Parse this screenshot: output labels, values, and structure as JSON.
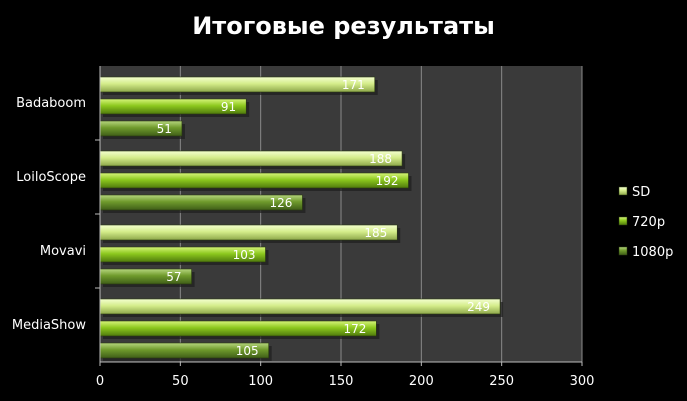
{
  "chart_data": {
    "type": "bar",
    "orientation": "horizontal",
    "title": "Итоговые результаты",
    "categories": [
      "Badaboom",
      "LoiloScope",
      "Movavi",
      "MediaShow"
    ],
    "series": [
      {
        "name": "SD",
        "values": [
          171,
          188,
          185,
          249
        ],
        "color": "#d4ec8a"
      },
      {
        "name": "720p",
        "values": [
          91,
          192,
          103,
          172
        ],
        "color": "#8cc81e"
      },
      {
        "name": "1080p",
        "values": [
          51,
          126,
          57,
          105
        ],
        "color": "#6f9a2c"
      }
    ],
    "xlim": [
      0,
      300
    ],
    "xticks": [
      0,
      50,
      100,
      150,
      200,
      250,
      300
    ],
    "grid": true,
    "legend_position": "right",
    "plot_background": "#3a3a3a",
    "page_background": "#000000"
  }
}
